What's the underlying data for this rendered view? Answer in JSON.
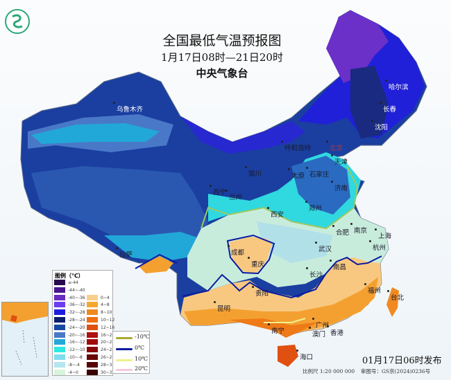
{
  "header": {
    "title": "全国最低气温预报图",
    "period": "1月17日08时—21日20时",
    "agency": "中央气象台"
  },
  "cities": [
    "哈尔滨",
    "长春",
    "沈阳",
    "乌鲁木齐",
    "呼和浩特",
    "北京",
    "天津",
    "石家庄",
    "太原",
    "济南",
    "银川",
    "西宁",
    "兰州",
    "郑州",
    "西安",
    "合肥",
    "南京",
    "上海",
    "杭州",
    "武汉",
    "成都",
    "重庆",
    "长沙",
    "南昌",
    "贵阳",
    "昆明",
    "福州",
    "台北",
    "南宁",
    "广州",
    "澳门",
    "香港",
    "海口",
    "拉萨"
  ],
  "legend": {
    "title": "图例（℃）",
    "bins": [
      {
        "label": "≤-44",
        "color": "#2a0a4e"
      },
      {
        "label": "-44~-40",
        "color": "#4b1590"
      },
      {
        "label": "-40~-36",
        "color": "#6a2bc0"
      },
      {
        "label": "-36~-32",
        "color": "#6b3cf0"
      },
      {
        "label": "-32~-28",
        "color": "#1e1ee0"
      },
      {
        "label": "-28~-24",
        "color": "#0e1e6e"
      },
      {
        "label": "-24~-20",
        "color": "#1848a0"
      },
      {
        "label": "-20~-16",
        "color": "#4a78c8"
      },
      {
        "label": "-16~-12",
        "color": "#22a8d8"
      },
      {
        "label": "-12~-10",
        "color": "#30e8e0"
      },
      {
        "label": "-10~-8",
        "color": "#80dcee"
      },
      {
        "label": "-8~-4",
        "color": "#b4e6f0"
      },
      {
        "label": "-4~0",
        "color": "#d8f4dc"
      },
      {
        "label": "0~4",
        "color": "#f8d08c"
      },
      {
        "label": "4~8",
        "color": "#f4a830"
      },
      {
        "label": "8~10",
        "color": "#f08a20"
      },
      {
        "label": "10~12",
        "color": "#f07010"
      },
      {
        "label": "12~16",
        "color": "#e05010"
      },
      {
        "label": "16~20",
        "color": "#b01010"
      },
      {
        "label": "20~24",
        "color": "#a00a0a"
      },
      {
        "label": "24~26",
        "color": "#880808"
      },
      {
        "label": "26~28",
        "color": "#6a0606"
      },
      {
        "label": "28~30",
        "color": "#560404"
      },
      {
        "label": "30~32",
        "color": "#3a0202"
      }
    ],
    "isolines": [
      {
        "label": "-10℃",
        "color": "#a8a830"
      },
      {
        "label": "0℃",
        "color": "#0a1aa0"
      },
      {
        "label": "10℃",
        "color": "#f0f090"
      },
      {
        "label": "20℃",
        "color": "#f4c8e0"
      }
    ]
  },
  "footer": {
    "issued": "01月17日06时发布",
    "scale": "比例尺 1:20 000 000",
    "review_no": "审图号：GS京(2024)0236号"
  }
}
